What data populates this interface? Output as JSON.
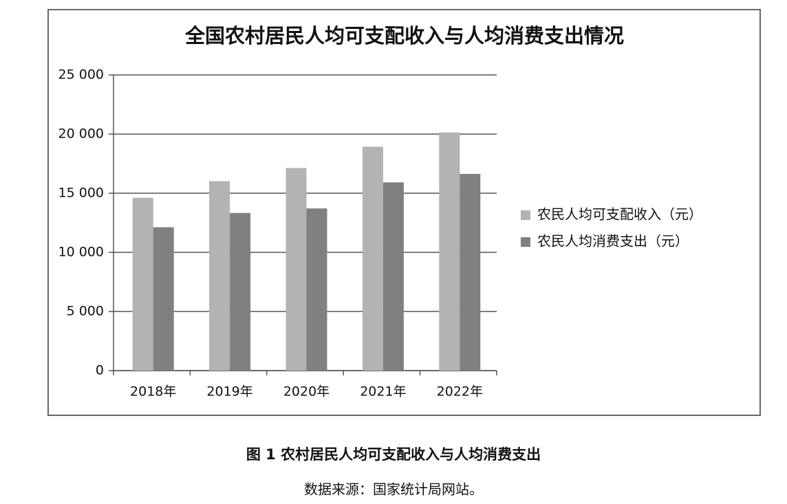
{
  "chart_data": {
    "type": "bar",
    "title": "全国农村居民人均可支配收入与人均消费支出情况",
    "categories": [
      "2018年",
      "2019年",
      "2020年",
      "2021年",
      "2022年"
    ],
    "series": [
      {
        "name": "农民人均可支配收入（元）",
        "color": "#b3b3b3",
        "values": [
          14617,
          16021,
          17131,
          18931,
          20133
        ]
      },
      {
        "name": "农民人均消费支出（元）",
        "color": "#808080",
        "values": [
          12124,
          13328,
          13713,
          15916,
          16632
        ]
      }
    ],
    "ylim": [
      0,
      25000
    ],
    "yticks": [
      0,
      {
        "value": 5000,
        "label": "5 000"
      },
      {
        "value": 10000,
        "label": "10 000"
      },
      {
        "value": 15000,
        "label": "15 000"
      },
      {
        "value": 20000,
        "label": "20 000"
      },
      {
        "value": 25000,
        "label": "25 000"
      }
    ],
    "grid": true,
    "legend": "right"
  },
  "caption": {
    "figure": "图 1  农村居民人均可支配收入与人均消费支出",
    "source": "数据来源：国家统计局网站。"
  }
}
